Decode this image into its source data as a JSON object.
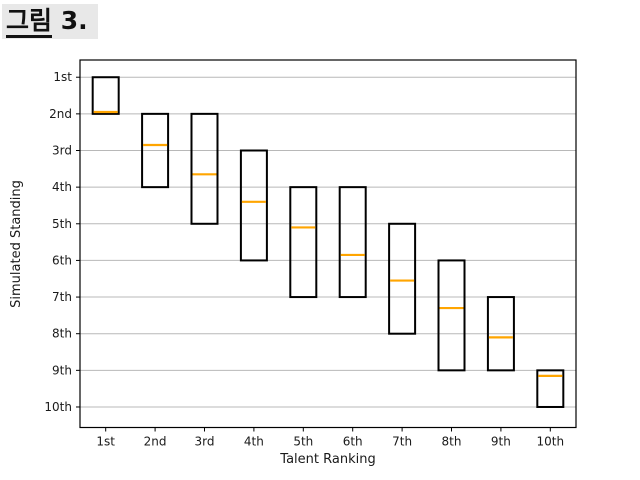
{
  "header": {
    "title_underlined": "그림",
    "title_rest": " 3."
  },
  "chart_data": {
    "type": "box",
    "title": "그림 3.",
    "xlabel": "Talent Ranking",
    "ylabel": "Simulated Standing",
    "x_tick_labels": [
      "1st",
      "2nd",
      "3rd",
      "4th",
      "5th",
      "6th",
      "7th",
      "8th",
      "9th",
      "10th"
    ],
    "y_tick_labels": [
      "1st",
      "2nd",
      "3rd",
      "4th",
      "5th",
      "6th",
      "7th",
      "8th",
      "9th",
      "10th"
    ],
    "xlim": [
      0.48,
      10.52
    ],
    "ylim": [
      0.53,
      10.56
    ],
    "y_axis_inverted": true,
    "grid": "horizontal-only",
    "legend": null,
    "boxes": [
      {
        "x": 1,
        "talent": "1st",
        "top": 1,
        "bottom": 2,
        "median": 1.95
      },
      {
        "x": 2,
        "talent": "2nd",
        "top": 2,
        "bottom": 4,
        "median": 2.85
      },
      {
        "x": 3,
        "talent": "3rd",
        "top": 2,
        "bottom": 5,
        "median": 3.65
      },
      {
        "x": 4,
        "talent": "4th",
        "top": 3,
        "bottom": 6,
        "median": 4.4
      },
      {
        "x": 5,
        "talent": "5th",
        "top": 4,
        "bottom": 7,
        "median": 5.1
      },
      {
        "x": 6,
        "talent": "6th",
        "top": 4,
        "bottom": 7,
        "median": 5.85
      },
      {
        "x": 7,
        "talent": "7th",
        "top": 5,
        "bottom": 8,
        "median": 6.55
      },
      {
        "x": 8,
        "talent": "8th",
        "top": 6,
        "bottom": 9,
        "median": 7.3
      },
      {
        "x": 9,
        "talent": "9th",
        "top": 7,
        "bottom": 9,
        "median": 8.1
      },
      {
        "x": 10,
        "talent": "10th",
        "top": 9,
        "bottom": 10,
        "median": 9.15
      }
    ],
    "colors": {
      "box_edge": "#000000",
      "median": "#ffa500",
      "grid": "#b8b8b8",
      "axis": "#000000",
      "text": "#1a1a1a",
      "title_text": "#111111",
      "title_highlight": "#e8e8e8",
      "background": "#ffffff"
    }
  }
}
